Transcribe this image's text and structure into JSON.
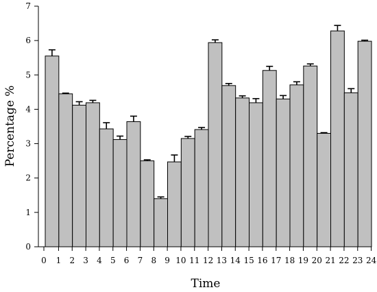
{
  "chart_data": {
    "type": "bar",
    "title": "",
    "xlabel": "Time",
    "ylabel": "Percentage %",
    "ylim": [
      0,
      7
    ],
    "yticks": [
      0,
      1,
      2,
      3,
      4,
      5,
      6,
      7
    ],
    "grid": false,
    "bar_color": "#c0c0c0",
    "categories": [
      "0",
      "1",
      "2",
      "3",
      "4",
      "5",
      "6",
      "7",
      "8",
      "9",
      "10",
      "11",
      "12",
      "13",
      "14",
      "15",
      "16",
      "17",
      "18",
      "19",
      "20",
      "21",
      "22",
      "23",
      "24"
    ],
    "values": [
      5.55,
      4.45,
      4.12,
      4.19,
      3.43,
      3.12,
      3.64,
      2.5,
      1.4,
      2.47,
      3.15,
      3.41,
      5.94,
      4.69,
      4.33,
      4.19,
      5.13,
      4.3,
      4.71,
      5.26,
      3.3,
      6.28,
      4.48,
      5.98,
      0
    ],
    "errors": [
      0.18,
      0.02,
      0.1,
      0.07,
      0.18,
      0.1,
      0.16,
      0.03,
      0.05,
      0.2,
      0.06,
      0.06,
      0.08,
      0.06,
      0.06,
      0.12,
      0.12,
      0.1,
      0.09,
      0.06,
      0.02,
      0.16,
      0.12,
      0.03,
      0
    ]
  }
}
